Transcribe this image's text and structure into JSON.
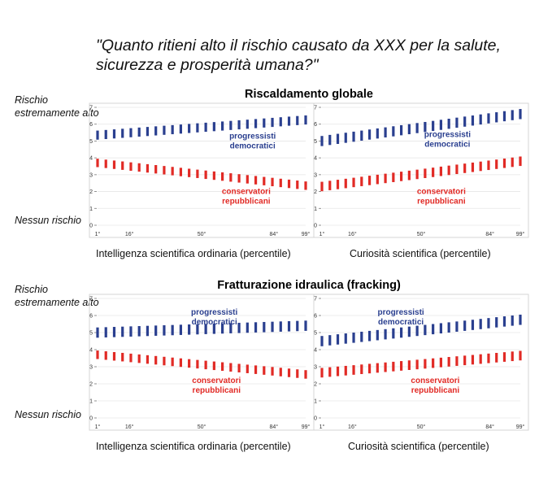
{
  "headline": "\"Quanto ritieni alto il rischio causato da XXX per la salute, sicurezza e prosperità umana?\"",
  "y_top_label": "Rischio estremamente alto",
  "y_bottom_label": "Nessun rischio",
  "colors": {
    "progressisti": "#2a3f8f",
    "conservatori": "#e12a25",
    "panel_border": "#d4d4d4",
    "grid": "#e6e6e6"
  },
  "legend_labels": {
    "progressisti": [
      "progressisti",
      "democratici"
    ],
    "conservatori": [
      "conservatori",
      "repubblicani"
    ]
  },
  "panel_rows": [
    {
      "title": "Riscaldamento globale"
    },
    {
      "title": "Fratturazione idraulica (fracking)"
    }
  ],
  "chart_data": [
    {
      "type": "scatter",
      "row": 0,
      "col": 0,
      "xlabel": "Intelligenza scientifica ordinaria (percentile)",
      "xlim": [
        1,
        99
      ],
      "ylim": [
        0,
        7
      ],
      "xticks": [
        {
          "v": 1,
          "label": "1°"
        },
        {
          "v": 16,
          "label": "16°"
        },
        {
          "v": 50,
          "label": "50°"
        },
        {
          "v": 84,
          "label": "84°"
        },
        {
          "v": 99,
          "label": "99°"
        }
      ],
      "yticks": [
        0,
        1,
        2,
        3,
        4,
        5,
        6,
        7
      ],
      "series": [
        {
          "name": "progressisti democratici",
          "start": 5.35,
          "end": 6.25,
          "halfwidth_start": 0.27,
          "halfwidth_end": 0.27
        },
        {
          "name": "conservatori repubblicani",
          "start": 3.7,
          "end": 2.35,
          "halfwidth_start": 0.25,
          "halfwidth_end": 0.25
        }
      ],
      "legend_pos": [
        {
          "x": 74,
          "y": 5.15
        },
        {
          "x": 71,
          "y": 1.85
        }
      ]
    },
    {
      "type": "scatter",
      "row": 0,
      "col": 1,
      "xlabel": "Curiosità scientifica (percentile)",
      "xlim": [
        1,
        99
      ],
      "ylim": [
        0,
        7
      ],
      "xticks": [
        {
          "v": 1,
          "label": "1°"
        },
        {
          "v": 16,
          "label": "16°"
        },
        {
          "v": 50,
          "label": "50°"
        },
        {
          "v": 84,
          "label": "84°"
        },
        {
          "v": 99,
          "label": "99°"
        }
      ],
      "yticks": [
        0,
        1,
        2,
        3,
        4,
        5,
        6,
        7
      ],
      "series": [
        {
          "name": "progressisti democratici",
          "start": 5.0,
          "end": 6.6,
          "halfwidth_start": 0.3,
          "halfwidth_end": 0.3
        },
        {
          "name": "conservatori repubblicani",
          "start": 2.3,
          "end": 3.8,
          "halfwidth_start": 0.28,
          "halfwidth_end": 0.28
        }
      ],
      "legend_pos": [
        {
          "x": 63,
          "y": 5.25
        },
        {
          "x": 60,
          "y": 1.85
        }
      ]
    },
    {
      "type": "scatter",
      "row": 1,
      "col": 0,
      "xlabel": "Intelligenza scientifica ordinaria (percentile)",
      "xlim": [
        1,
        99
      ],
      "ylim": [
        0,
        7
      ],
      "xticks": [
        {
          "v": 1,
          "label": "1°"
        },
        {
          "v": 16,
          "label": "16°"
        },
        {
          "v": 50,
          "label": "50°"
        },
        {
          "v": 84,
          "label": "84°"
        },
        {
          "v": 99,
          "label": "99°"
        }
      ],
      "yticks": [
        0,
        1,
        2,
        3,
        4,
        5,
        6,
        7
      ],
      "series": [
        {
          "name": "progressisti democratici",
          "start": 5.0,
          "end": 5.4,
          "halfwidth_start": 0.3,
          "halfwidth_end": 0.3
        },
        {
          "name": "conservatori repubblicani",
          "start": 3.7,
          "end": 2.55,
          "halfwidth_start": 0.25,
          "halfwidth_end": 0.25
        }
      ],
      "legend_pos": [
        {
          "x": 56,
          "y": 6.05
        },
        {
          "x": 57,
          "y": 2.05
        }
      ]
    },
    {
      "type": "scatter",
      "row": 1,
      "col": 1,
      "xlabel": "Curiosità scientifica (percentile)",
      "xlim": [
        1,
        99
      ],
      "ylim": [
        0,
        7
      ],
      "xticks": [
        {
          "v": 1,
          "label": "1°"
        },
        {
          "v": 16,
          "label": "16°"
        },
        {
          "v": 50,
          "label": "50°"
        },
        {
          "v": 84,
          "label": "84°"
        },
        {
          "v": 99,
          "label": "99°"
        }
      ],
      "yticks": [
        0,
        1,
        2,
        3,
        4,
        5,
        6,
        7
      ],
      "series": [
        {
          "name": "progressisti democratici",
          "start": 4.5,
          "end": 5.75,
          "halfwidth_start": 0.3,
          "halfwidth_end": 0.3
        },
        {
          "name": "conservatori repubblicani",
          "start": 2.65,
          "end": 3.65,
          "halfwidth_start": 0.28,
          "halfwidth_end": 0.28
        }
      ],
      "legend_pos": [
        {
          "x": 40,
          "y": 6.05
        },
        {
          "x": 57,
          "y": 2.05
        }
      ]
    }
  ]
}
